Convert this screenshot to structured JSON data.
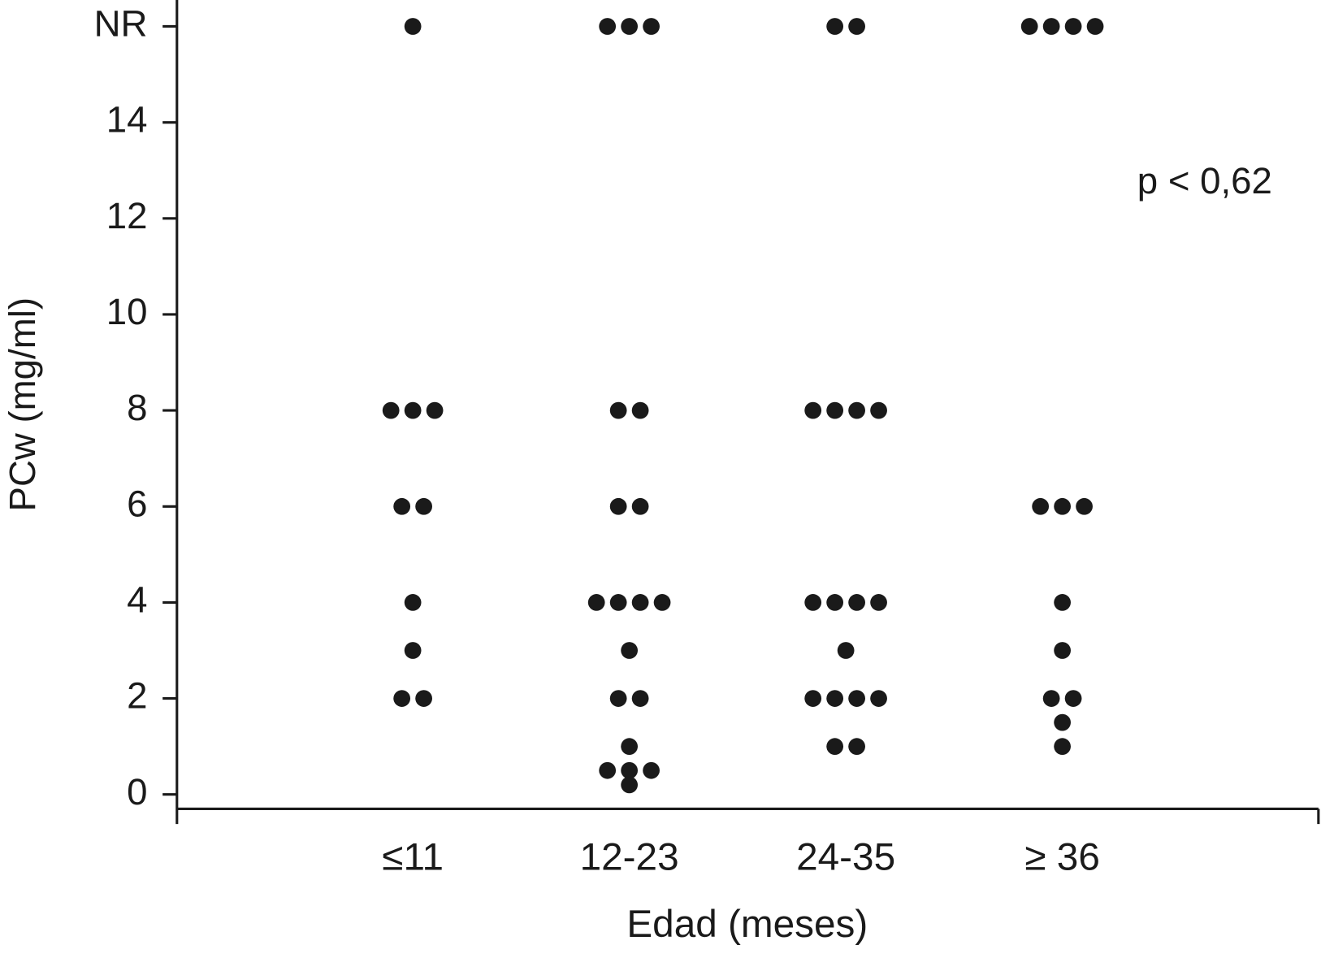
{
  "chart_data": {
    "type": "dot",
    "x_label": "Edad (meses)",
    "y_label": "PCw (mg/ml)",
    "annotation": "p < 0,62",
    "categories": [
      "≤11",
      "12-23",
      "24-35",
      "≥ 36"
    ],
    "values": [
      [
        16,
        8,
        8,
        8,
        6,
        6,
        4,
        3,
        2,
        2
      ],
      [
        16,
        16,
        16,
        8,
        8,
        6,
        6,
        4,
        4,
        4,
        4,
        3,
        2,
        2,
        1,
        0.5,
        0.5,
        0.5,
        0.2
      ],
      [
        16,
        16,
        8,
        8,
        8,
        8,
        4,
        4,
        4,
        4,
        3,
        2,
        2,
        2,
        2,
        1,
        1
      ],
      [
        16,
        16,
        16,
        16,
        6,
        6,
        6,
        4,
        3,
        2,
        2,
        1.5,
        1
      ]
    ],
    "color": "#1a1a1a",
    "ylim": [
      -0.3,
      16.55
    ],
    "yticks": [
      0,
      2,
      4,
      6,
      8,
      10,
      12,
      14,
      {
        "value": 16,
        "label": "NR"
      }
    ]
  }
}
